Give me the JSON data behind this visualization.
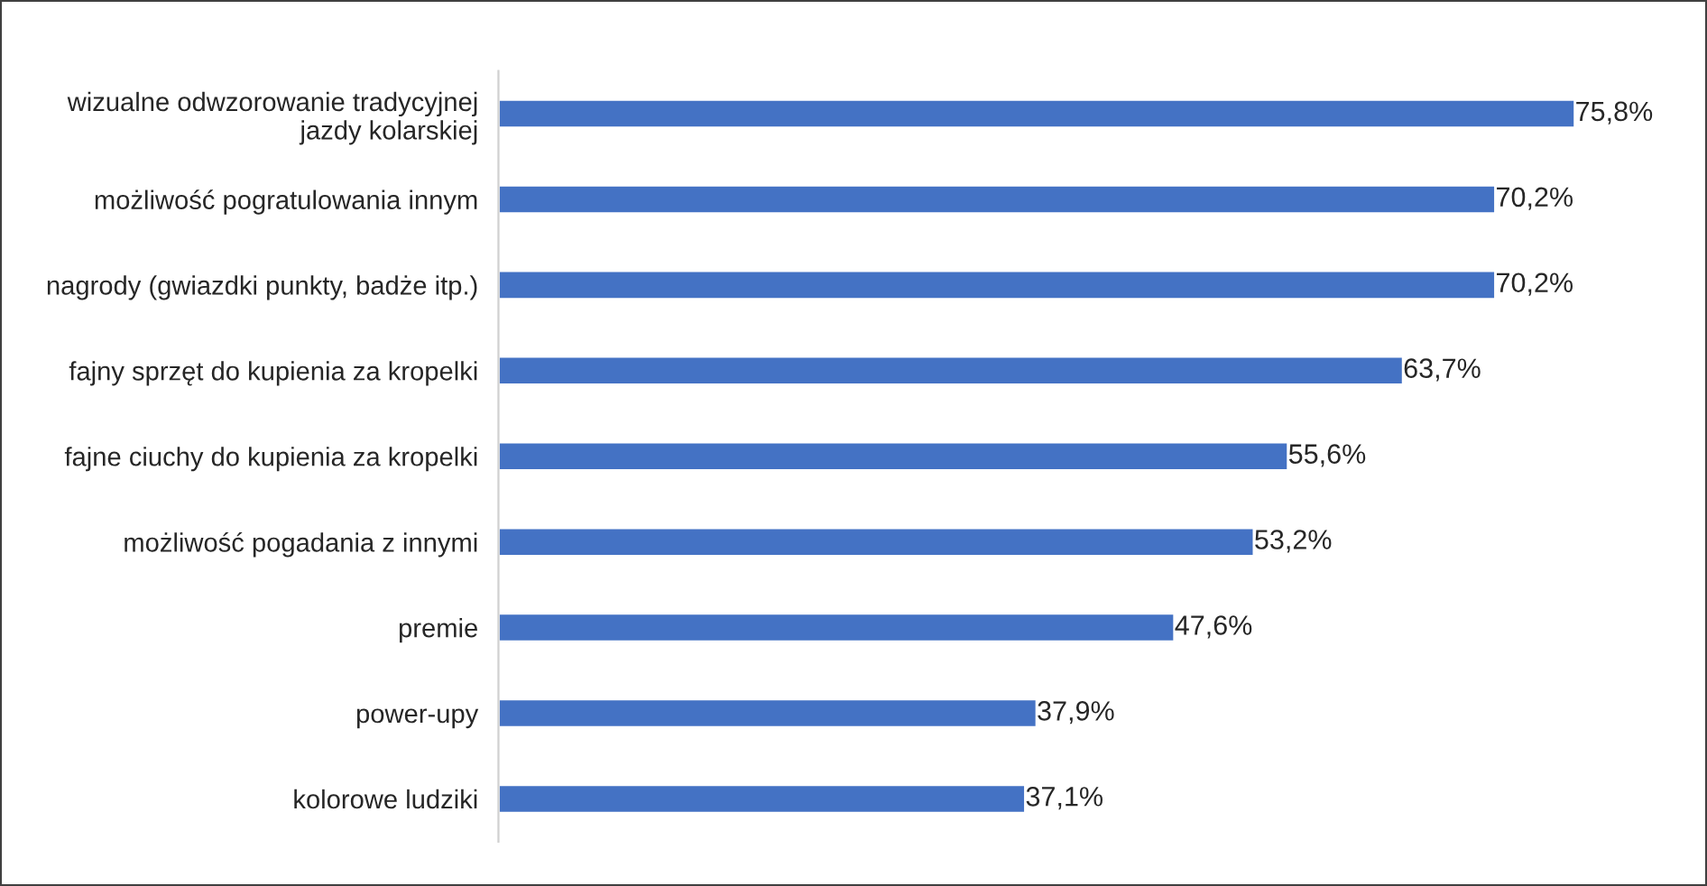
{
  "chart_data": {
    "type": "bar",
    "orientation": "horizontal",
    "categories": [
      "wizualne odwzorowanie tradycyjnej jazdy kolarskiej",
      "możliwość pogratulowania innym",
      "nagrody (gwiazdki punkty, badże itp.)",
      "fajny sprzęt do kupienia za kropelki",
      "fajne ciuchy do kupienia za kropelki",
      "możliwość pogadania z innymi",
      "premie",
      "power-upy",
      "kolorowe ludziki"
    ],
    "values": [
      75.8,
      70.2,
      70.2,
      63.7,
      55.6,
      53.2,
      47.6,
      37.9,
      37.1
    ],
    "value_labels": [
      "75,8%",
      "70,2%",
      "70,2%",
      "63,7%",
      "55,6%",
      "53,2%",
      "47,6%",
      "37,9%",
      "37,1%"
    ],
    "color": "#4472c4",
    "grid": false,
    "legend": false
  }
}
